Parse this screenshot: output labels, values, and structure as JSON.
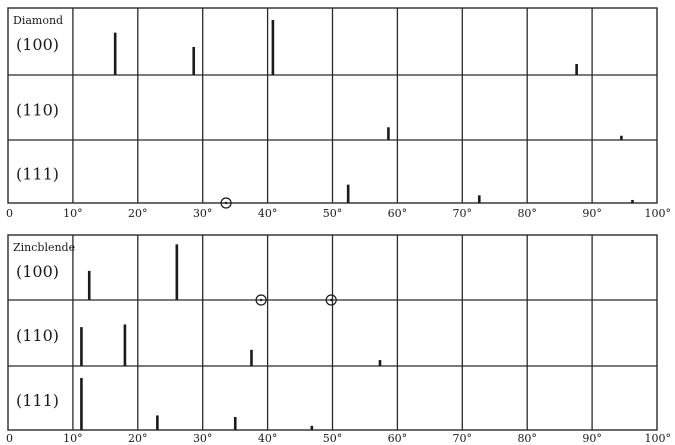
{
  "chart_data": [
    {
      "type": "bar",
      "title": "Diamond",
      "xlim": [
        0,
        100
      ],
      "x_ticks": [
        "0",
        "10°",
        "20°",
        "30°",
        "40°",
        "50°",
        "60°",
        "70°",
        "80°",
        "90°",
        "100°"
      ],
      "grid": true,
      "rows": [
        {
          "label": "(100)",
          "peaks": [
            {
              "x": 16.5,
              "intensity": 0.77
            },
            {
              "x": 28.6,
              "intensity": 0.51
            },
            {
              "x": 40.8,
              "intensity": 1.0
            },
            {
              "x": 87.6,
              "intensity": 0.2
            }
          ],
          "markers": []
        },
        {
          "label": "(110)",
          "peaks": [
            {
              "x": 58.6,
              "intensity": 0.24
            },
            {
              "x": 94.5,
              "intensity": 0.08
            }
          ],
          "markers": []
        },
        {
          "label": "(111)",
          "peaks": [
            {
              "x": 52.4,
              "intensity": 0.36
            },
            {
              "x": 72.6,
              "intensity": 0.15
            },
            {
              "x": 96.2,
              "intensity": 0.06
            }
          ],
          "markers": [
            {
              "x": 33.6
            }
          ]
        }
      ]
    },
    {
      "type": "bar",
      "title": "Zincblende",
      "xlim": [
        0,
        100
      ],
      "x_ticks": [
        "0",
        "10°",
        "20°",
        "30°",
        "40°",
        "50°",
        "60°",
        "70°",
        "80°",
        "90°",
        "100°"
      ],
      "grid": true,
      "rows": [
        {
          "label": "(100)",
          "peaks": [
            {
              "x": 12.5,
              "intensity": 0.55
            },
            {
              "x": 26.0,
              "intensity": 1.05
            }
          ],
          "markers": [
            {
              "x": 39.0
            },
            {
              "x": 49.8
            }
          ]
        },
        {
          "label": "(110)",
          "peaks": [
            {
              "x": 11.3,
              "intensity": 0.72
            },
            {
              "x": 18.0,
              "intensity": 0.77
            },
            {
              "x": 37.5,
              "intensity": 0.3
            },
            {
              "x": 57.3,
              "intensity": 0.11
            }
          ],
          "markers": []
        },
        {
          "label": "(111)",
          "peaks": [
            {
              "x": 11.3,
              "intensity": 1.0
            },
            {
              "x": 23.0,
              "intensity": 0.28
            },
            {
              "x": 35.0,
              "intensity": 0.25
            },
            {
              "x": 46.8,
              "intensity": 0.08
            }
          ],
          "markers": []
        }
      ]
    }
  ]
}
